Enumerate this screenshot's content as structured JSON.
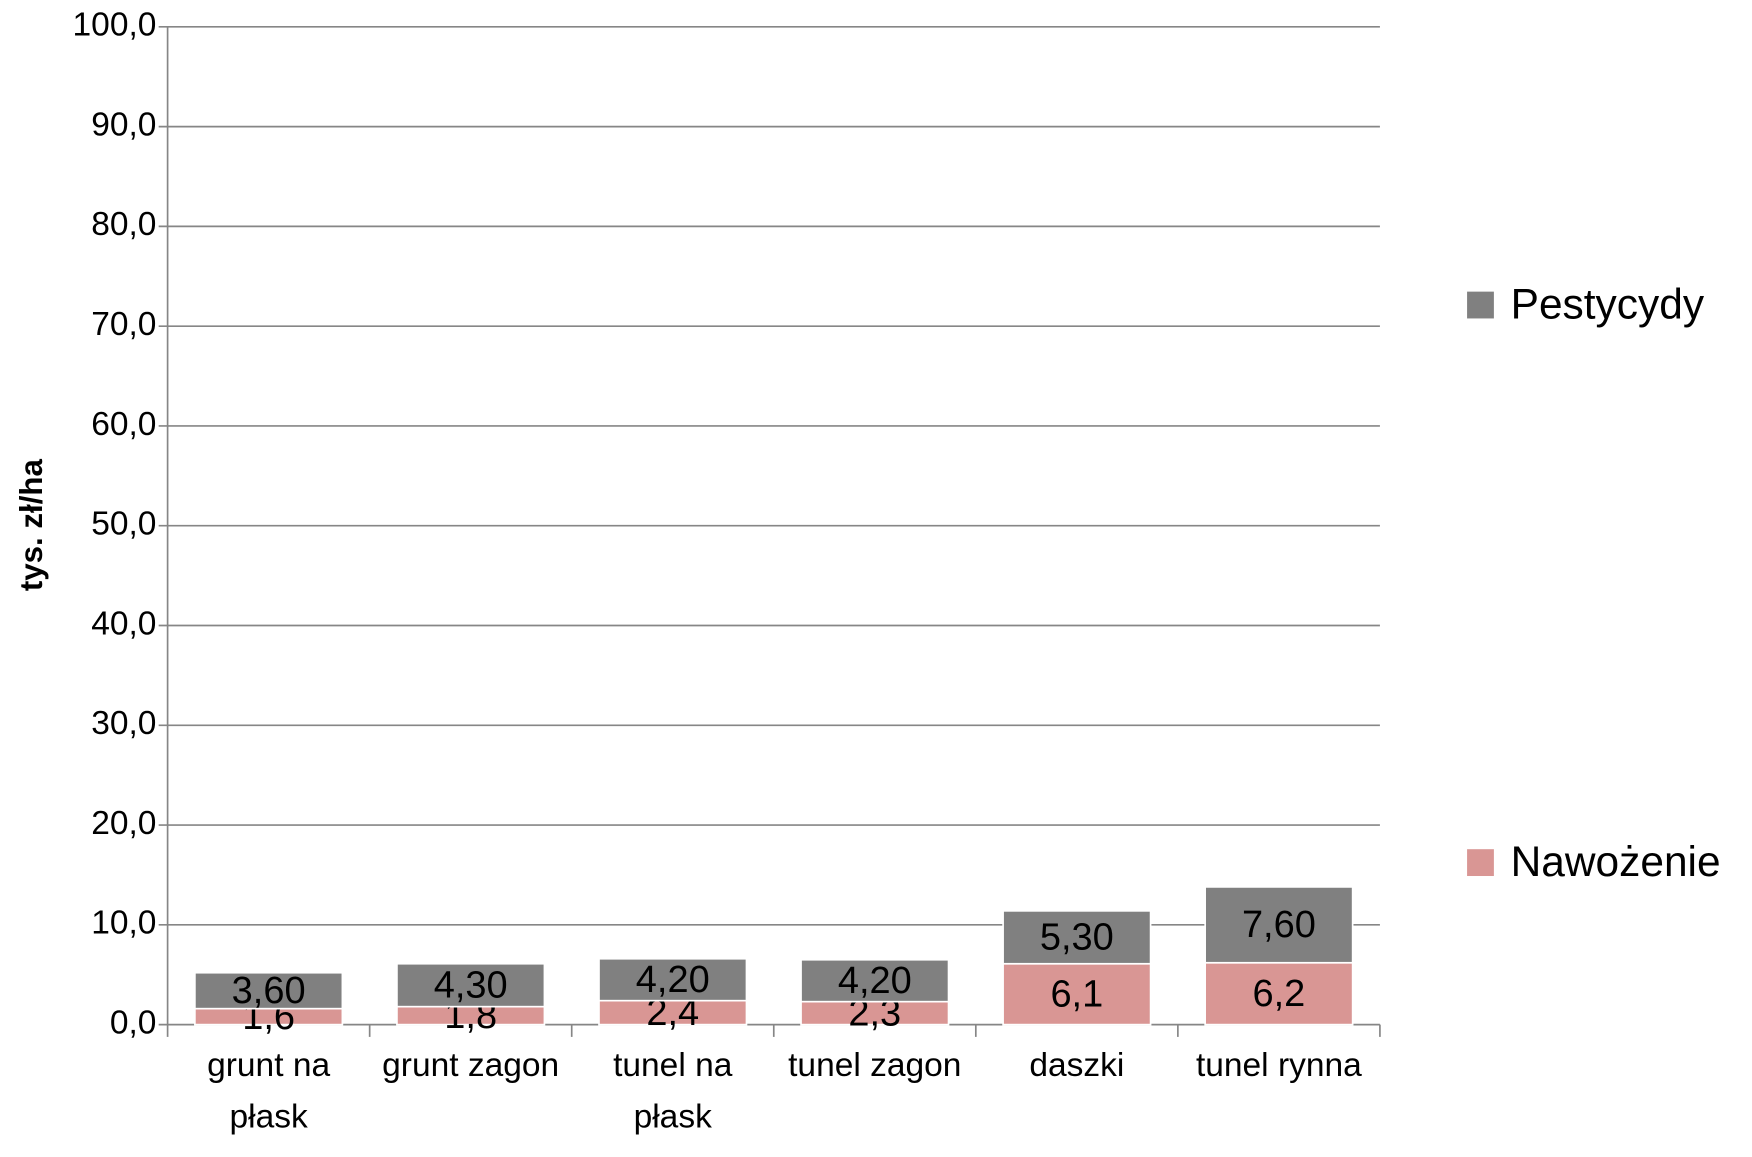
{
  "chart_data": {
    "type": "stacked_bar",
    "y_label": "tys. zł/ha",
    "categories": [
      "grunt na płask",
      "grunt zagon",
      "tunel na płask",
      "tunel zagon",
      "daszki",
      "tunel rynna"
    ],
    "series": [
      {
        "name": "Nawożenie",
        "color": "#d99694",
        "values": [
          1.6,
          1.8,
          2.4,
          2.3,
          6.1,
          6.2
        ],
        "value_labels": [
          "1,6",
          "1,8",
          "2,4",
          "2,3",
          "6,1",
          "6,2"
        ]
      },
      {
        "name": "Pestycydy",
        "color": "#808080",
        "values": [
          3.6,
          4.3,
          4.2,
          4.2,
          5.3,
          7.6
        ],
        "value_labels": [
          "3,60",
          "4,30",
          "4,20",
          "4,20",
          "5,30",
          "7,60"
        ]
      }
    ],
    "ylim": [
      0,
      100
    ],
    "yticks": [
      {
        "value": 0,
        "label": "0,0"
      },
      {
        "value": 10,
        "label": "10,0"
      },
      {
        "value": 20,
        "label": "20,0"
      },
      {
        "value": 30,
        "label": "30,0"
      },
      {
        "value": 40,
        "label": "40,0"
      },
      {
        "value": 50,
        "label": "50,0"
      },
      {
        "value": 60,
        "label": "60,0"
      },
      {
        "value": 70,
        "label": "70,0"
      },
      {
        "value": 80,
        "label": "80,0"
      },
      {
        "value": 90,
        "label": "90,0"
      },
      {
        "value": 100,
        "label": "100,0"
      }
    ],
    "grid": true,
    "legend": "right"
  }
}
